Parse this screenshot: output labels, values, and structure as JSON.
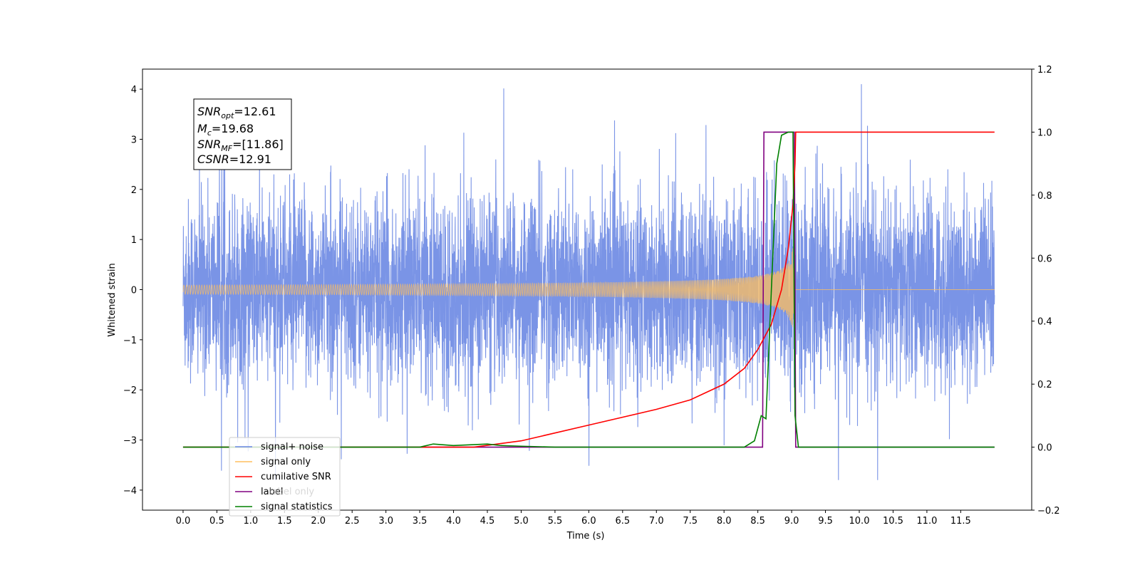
{
  "chart_data": {
    "type": "line",
    "xlabel": "Time (s)",
    "ylabel": "Whitened strain",
    "x_range": [
      -0.6,
      12.55
    ],
    "x_ticks": [
      "0.0",
      "0.5",
      "1.0",
      "1.5",
      "2.0",
      "2.5",
      "3.0",
      "3.5",
      "4.0",
      "4.5",
      "5.0",
      "5.5",
      "6.0",
      "6.5",
      "7.0",
      "7.5",
      "8.0",
      "8.5",
      "9.0",
      "9.5",
      "10.0",
      "10.5",
      "11.0",
      "11.5"
    ],
    "left_axis": {
      "ylim": [
        -4.4,
        4.4
      ],
      "ticks": [
        "4",
        "3",
        "2",
        "1",
        "0",
        "−1",
        "−2",
        "−3",
        "−4"
      ],
      "tick_values": [
        4,
        3,
        2,
        1,
        0,
        -1,
        -2,
        -3,
        -4
      ]
    },
    "right_axis": {
      "ylim": [
        -0.2,
        1.2
      ],
      "ticks": [
        "1.2",
        "1.0",
        "0.8",
        "0.6",
        "0.4",
        "0.2",
        "0.0",
        "−0.2"
      ],
      "tick_values": [
        1.2,
        1.0,
        0.8,
        0.6,
        0.4,
        0.2,
        0.0,
        -0.2
      ]
    },
    "grid": false,
    "legend_position": "lower-left",
    "series": [
      {
        "name": "signal+ noise",
        "color": "#6b88e3",
        "axis": "left",
        "description_range": [
          -3.8,
          4.1
        ],
        "x_span": [
          0.0,
          12.0
        ]
      },
      {
        "name": "signal only",
        "color": "#ffbf5e",
        "axis": "left",
        "chirp_end": 9.05,
        "peak_amplitude": 0.5
      },
      {
        "name": "cumilative SNR",
        "color": "#ff0000",
        "axis": "right",
        "x": [
          0.0,
          4.3,
          5.0,
          6.0,
          7.0,
          7.5,
          8.0,
          8.3,
          8.5,
          8.7,
          8.85,
          8.95,
          9.02,
          9.05,
          9.06,
          12.0
        ],
        "y": [
          0.0,
          0.0,
          0.02,
          0.07,
          0.12,
          0.15,
          0.2,
          0.25,
          0.31,
          0.39,
          0.5,
          0.63,
          0.77,
          0.9,
          1.0,
          1.0
        ]
      },
      {
        "name": "label",
        "color": "#800080",
        "axis": "right",
        "x": [
          0.0,
          8.57,
          8.59,
          9.04,
          9.06,
          12.0
        ],
        "y": [
          0.0,
          0.0,
          1.0,
          1.0,
          0.0,
          0.0
        ]
      },
      {
        "name": "label only",
        "color": "#ffbf5e",
        "axis": "right",
        "hidden_behind_legend": true
      },
      {
        "name": "signal statistics",
        "color": "#008000",
        "axis": "right",
        "x": [
          0.0,
          3.0,
          3.5,
          3.7,
          4.0,
          4.5,
          4.7,
          5.0,
          5.5,
          8.3,
          8.45,
          8.55,
          8.62,
          8.7,
          8.78,
          8.85,
          8.95,
          9.02,
          9.05,
          9.1,
          12.0
        ],
        "y": [
          0.0,
          0.0,
          0.0,
          0.01,
          0.005,
          0.01,
          0.005,
          0.003,
          0.0,
          0.0,
          0.02,
          0.1,
          0.09,
          0.5,
          0.9,
          0.99,
          1.0,
          1.0,
          0.1,
          0.0,
          0.0
        ]
      }
    ],
    "annotation": {
      "snr_opt_label": "SNR",
      "snr_opt_sub": "opt",
      "snr_opt_value": "=12.61",
      "mc_label": "M",
      "mc_sub": "c",
      "mc_value": "=19.68",
      "snr_mf_label": "SNR",
      "snr_mf_sub": "MF",
      "snr_mf_value": "=[11.86]",
      "csnr_label": "CSNR",
      "csnr_value": "=12.91"
    }
  }
}
